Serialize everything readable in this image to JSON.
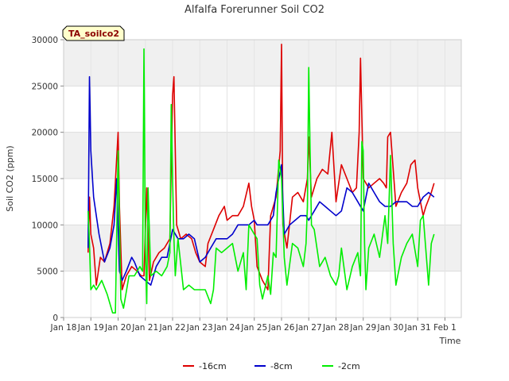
{
  "chart_data": {
    "type": "line",
    "title": "Alfalfa Forerunner Soil CO2",
    "xlabel": "Time",
    "ylabel": "Soil CO2 (ppm)",
    "badge": "TA_soilco2",
    "ylim": [
      0,
      30000
    ],
    "yticks": [
      0,
      5000,
      10000,
      15000,
      20000,
      25000,
      30000
    ],
    "xlim": [
      18,
      32.6
    ],
    "xticks": [
      {
        "day": 18,
        "label": "Jan 18"
      },
      {
        "day": 19,
        "label": "Jan 19"
      },
      {
        "day": 20,
        "label": "Jan 20"
      },
      {
        "day": 21,
        "label": "Jan 21"
      },
      {
        "day": 22,
        "label": "Jan 22"
      },
      {
        "day": 23,
        "label": "Jan 23"
      },
      {
        "day": 24,
        "label": "Jan 24"
      },
      {
        "day": 25,
        "label": "Jan 25"
      },
      {
        "day": 26,
        "label": "Jan 26"
      },
      {
        "day": 27,
        "label": "Jan 27"
      },
      {
        "day": 28,
        "label": "Jan 28"
      },
      {
        "day": 29,
        "label": "Jan 29"
      },
      {
        "day": 30,
        "label": "Jan 30"
      },
      {
        "day": 31,
        "label": "Jan 31"
      },
      {
        "day": 32,
        "label": "Feb 1"
      }
    ],
    "series": [
      {
        "name": "-16cm",
        "color": "#dd0000",
        "x": [
          18.9,
          18.95,
          19.0,
          19.1,
          19.2,
          19.35,
          19.5,
          19.7,
          19.85,
          20.0,
          20.05,
          20.15,
          20.3,
          20.5,
          20.7,
          20.85,
          20.95,
          21.05,
          21.15,
          21.3,
          21.5,
          21.7,
          21.9,
          22.0,
          22.05,
          22.15,
          22.3,
          22.5,
          22.7,
          22.85,
          23.0,
          23.2,
          23.3,
          23.5,
          23.7,
          23.9,
          24.0,
          24.2,
          24.4,
          24.6,
          24.8,
          24.9,
          25.0,
          25.1,
          25.3,
          25.5,
          25.6,
          25.8,
          25.95,
          26.0,
          26.05,
          26.2,
          26.4,
          26.6,
          26.8,
          26.95,
          27.0,
          27.1,
          27.3,
          27.5,
          27.7,
          27.85,
          28.0,
          28.2,
          28.4,
          28.6,
          28.75,
          28.85,
          28.9,
          29.0,
          29.2,
          29.4,
          29.6,
          29.75,
          29.85,
          29.9,
          30.0,
          30.2,
          30.4,
          30.6,
          30.75,
          30.9,
          31.0,
          31.2,
          31.3,
          31.5,
          31.6
        ],
        "values": [
          7000,
          13000,
          9000,
          7500,
          3500,
          6500,
          6000,
          8000,
          12000,
          20000,
          12000,
          3000,
          4500,
          5500,
          5000,
          4500,
          4500,
          14000,
          4000,
          6000,
          7000,
          7500,
          8500,
          24000,
          26000,
          10000,
          8500,
          9000,
          8500,
          7000,
          6000,
          5500,
          8000,
          9500,
          11000,
          12000,
          10500,
          11000,
          11000,
          12000,
          14500,
          12000,
          10500,
          5500,
          4000,
          3000,
          11000,
          13000,
          18000,
          29500,
          10000,
          7500,
          13000,
          13500,
          12500,
          15000,
          19500,
          13000,
          15000,
          16000,
          15500,
          20000,
          12500,
          16500,
          15000,
          13500,
          14000,
          20000,
          28000,
          15000,
          14000,
          14500,
          15000,
          14500,
          14000,
          19500,
          20000,
          12000,
          13500,
          14500,
          16500,
          17000,
          14000,
          11000,
          12000,
          13500,
          14500
        ]
      },
      {
        "name": "-8cm",
        "color": "#0000cc",
        "x": [
          18.9,
          18.95,
          19.0,
          19.1,
          19.2,
          19.3,
          19.5,
          19.7,
          19.85,
          19.95,
          20.05,
          20.15,
          20.3,
          20.5,
          20.6,
          20.8,
          21.0,
          21.2,
          21.4,
          21.6,
          21.8,
          22.0,
          22.2,
          22.4,
          22.6,
          22.8,
          23.0,
          23.2,
          23.4,
          23.6,
          23.8,
          24.0,
          24.2,
          24.4,
          24.6,
          24.8,
          25.0,
          25.1,
          25.3,
          25.5,
          25.7,
          25.8,
          26.0,
          26.1,
          26.3,
          26.5,
          26.7,
          26.9,
          27.0,
          27.2,
          27.4,
          27.6,
          27.8,
          28.0,
          28.2,
          28.4,
          28.6,
          28.8,
          29.0,
          29.2,
          29.4,
          29.6,
          29.8,
          30.0,
          30.2,
          30.4,
          30.6,
          30.8,
          31.0,
          31.2,
          31.4,
          31.6
        ],
        "values": [
          7500,
          26000,
          18000,
          13000,
          11000,
          9000,
          6000,
          7500,
          10000,
          15000,
          5000,
          4000,
          5000,
          6500,
          6000,
          4500,
          4000,
          3500,
          5500,
          6500,
          6500,
          9500,
          8500,
          8500,
          9000,
          8500,
          6000,
          6500,
          7500,
          8500,
          8500,
          8500,
          9000,
          10000,
          10000,
          10000,
          10500,
          10000,
          10000,
          10000,
          11000,
          13500,
          16500,
          9000,
          10000,
          10500,
          11000,
          11000,
          10500,
          11500,
          12500,
          12000,
          11500,
          11000,
          11500,
          14000,
          13500,
          12500,
          11500,
          14500,
          13500,
          12500,
          12000,
          12000,
          12500,
          12500,
          12500,
          12000,
          12000,
          13000,
          13500,
          13000
        ]
      },
      {
        "name": "-2cm",
        "color": "#00ee00",
        "x": [
          18.9,
          18.95,
          19.0,
          19.1,
          19.2,
          19.3,
          19.4,
          19.6,
          19.8,
          19.9,
          20.0,
          20.1,
          20.2,
          20.4,
          20.6,
          20.8,
          20.9,
          20.95,
          21.0,
          21.05,
          21.1,
          21.2,
          21.4,
          21.6,
          21.8,
          21.9,
          21.95,
          22.0,
          22.05,
          22.1,
          22.2,
          22.4,
          22.6,
          22.8,
          23.0,
          23.2,
          23.4,
          23.5,
          23.6,
          23.8,
          24.0,
          24.2,
          24.4,
          24.6,
          24.7,
          24.8,
          25.0,
          25.1,
          25.2,
          25.3,
          25.5,
          25.6,
          25.7,
          25.8,
          25.9,
          26.0,
          26.1,
          26.2,
          26.4,
          26.6,
          26.8,
          26.9,
          26.95,
          27.0,
          27.05,
          27.1,
          27.2,
          27.4,
          27.6,
          27.8,
          28.0,
          28.1,
          28.2,
          28.4,
          28.6,
          28.8,
          28.9,
          28.95,
          29.0,
          29.05,
          29.1,
          29.2,
          29.4,
          29.6,
          29.8,
          29.9,
          30.0,
          30.1,
          30.2,
          30.4,
          30.6,
          30.8,
          31.0,
          31.1,
          31.2,
          31.4,
          31.5,
          31.6
        ],
        "values": [
          11500,
          8000,
          3000,
          3500,
          3000,
          3500,
          4000,
          2500,
          500,
          500,
          18000,
          2000,
          1000,
          4500,
          4500,
          5500,
          5000,
          29000,
          8000,
          1500,
          14000,
          4500,
          5000,
          4500,
          5500,
          7000,
          23000,
          15000,
          8500,
          4500,
          8500,
          3000,
          3500,
          3000,
          3000,
          3000,
          1500,
          3000,
          7500,
          7000,
          7500,
          8000,
          5000,
          7000,
          3000,
          10000,
          9000,
          8500,
          3500,
          2000,
          4500,
          2500,
          7000,
          6500,
          17000,
          15000,
          6500,
          3500,
          8000,
          7500,
          5500,
          8000,
          12000,
          27000,
          18000,
          10000,
          9500,
          5500,
          6500,
          4500,
          3500,
          4500,
          7500,
          3000,
          5500,
          7000,
          4500,
          19000,
          18000,
          8000,
          3000,
          7500,
          9000,
          6500,
          11000,
          8000,
          17500,
          8000,
          3500,
          6500,
          8000,
          9000,
          5500,
          10500,
          11000,
          3500,
          8000,
          9000
        ]
      }
    ]
  }
}
